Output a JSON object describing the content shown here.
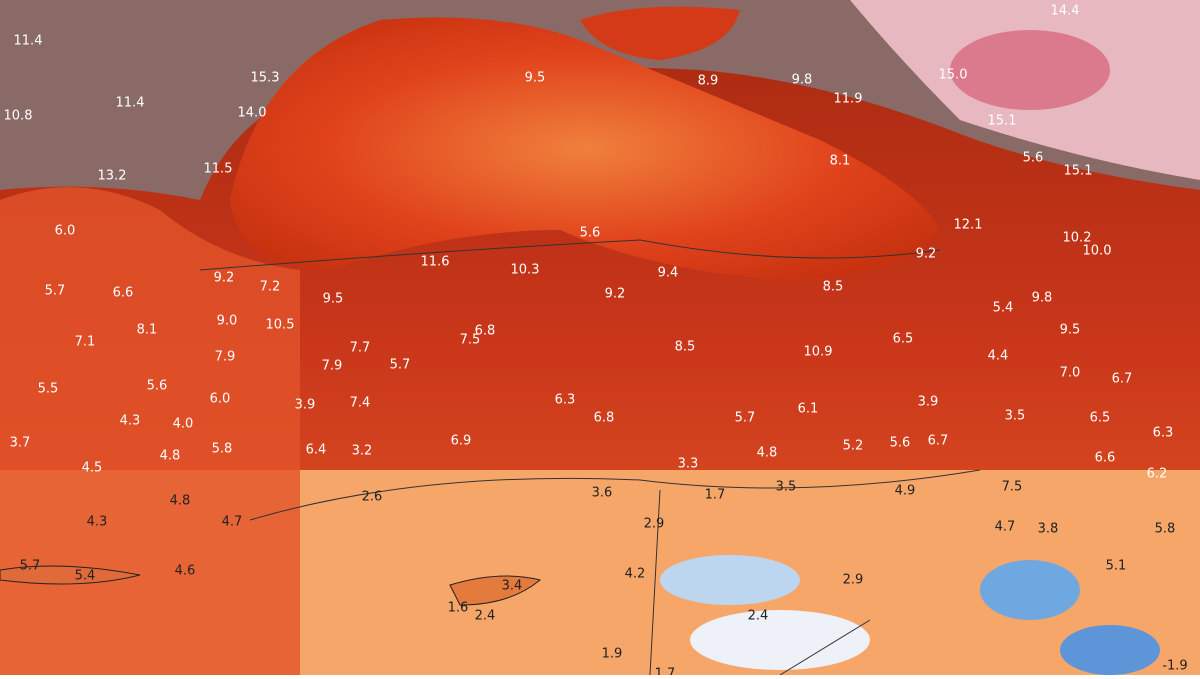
{
  "labels": [
    "11.4",
    "10.8",
    "11.4",
    "15.3",
    "14.0",
    "13.2",
    "11.5",
    "6.0",
    "5.7",
    "6.6",
    "8.1",
    "7.1",
    "5.5",
    "5.6",
    "4.0",
    "4.3",
    "3.7",
    "4.5",
    "4.8",
    "4.8",
    "4.3",
    "4.7",
    "5.7",
    "5.4",
    "4.6",
    "9.2",
    "7.2",
    "9.5",
    "9.0",
    "10.5",
    "7.9",
    "7.9",
    "7.7",
    "5.7",
    "7.5",
    "6.8",
    "6.0",
    "3.9",
    "7.4",
    "5.8",
    "6.4",
    "3.2",
    "2.6",
    "6.9",
    "6.3",
    "6.8",
    "3.6",
    "3.3",
    "1.7",
    "3.5",
    "2.9",
    "4.2",
    "1.6",
    "2.4",
    "3.4",
    "1.9",
    "1.7",
    "2.4",
    "2.9",
    "11.6",
    "10.3",
    "5.6",
    "9.2",
    "9.4",
    "8.5",
    "5.7",
    "4.8",
    "5.2",
    "5.6",
    "6.7",
    "4.9",
    "3.9",
    "6.1",
    "10.9",
    "6.5",
    "4.4",
    "3.5",
    "5.4",
    "8.5",
    "9.2",
    "12.1",
    "8.1",
    "9.5",
    "8.9",
    "9.8",
    "11.9",
    "15.0",
    "15.1",
    "14.4",
    "5.6",
    "15.1",
    "10.2",
    "10.0",
    "9.8",
    "9.5",
    "7.0",
    "6.7",
    "6.5",
    "6.3",
    "6.6",
    "6.2",
    "7.5",
    "4.7",
    "3.8",
    "5.8",
    "5.1",
    "-1.9"
  ]
}
